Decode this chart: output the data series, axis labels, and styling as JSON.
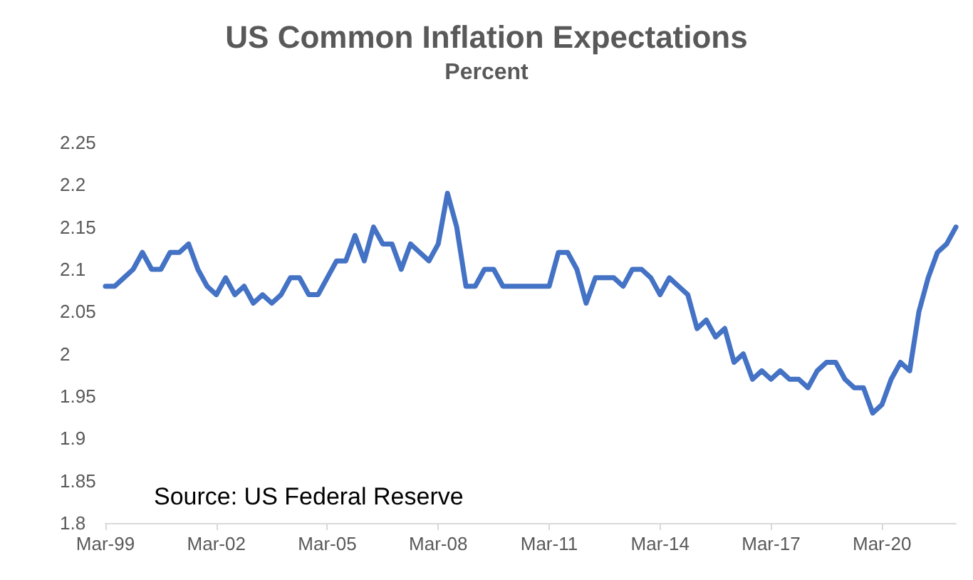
{
  "chart_data": {
    "type": "line",
    "title": "US Common Inflation Expectations",
    "subtitle": "Percent",
    "annotations": [
      "Source: US Federal Reserve"
    ],
    "categories": [
      "Mar-99",
      null,
      null,
      null,
      null,
      null,
      null,
      null,
      null,
      null,
      null,
      null,
      "Mar-02",
      null,
      null,
      null,
      null,
      null,
      null,
      null,
      null,
      null,
      null,
      null,
      "Mar-05",
      null,
      null,
      null,
      null,
      null,
      null,
      null,
      null,
      null,
      null,
      null,
      "Mar-08",
      null,
      null,
      null,
      null,
      null,
      null,
      null,
      null,
      null,
      null,
      null,
      "Mar-11",
      null,
      null,
      null,
      null,
      null,
      null,
      null,
      null,
      null,
      null,
      null,
      "Mar-14",
      null,
      null,
      null,
      null,
      null,
      null,
      null,
      null,
      null,
      null,
      null,
      "Mar-17",
      null,
      null,
      null,
      null,
      null,
      null,
      null,
      null,
      null,
      null,
      null,
      "Mar-20",
      null,
      null,
      null,
      null,
      null,
      null,
      null,
      null
    ],
    "series": [
      {
        "color": "#4472c4",
        "values": [
          2.08,
          2.08,
          2.09,
          2.1,
          2.12,
          2.1,
          2.1,
          2.12,
          2.12,
          2.13,
          2.1,
          2.08,
          2.07,
          2.09,
          2.07,
          2.08,
          2.06,
          2.07,
          2.06,
          2.07,
          2.09,
          2.09,
          2.07,
          2.07,
          2.09,
          2.11,
          2.11,
          2.14,
          2.11,
          2.15,
          2.13,
          2.13,
          2.1,
          2.13,
          2.12,
          2.11,
          2.13,
          2.19,
          2.15,
          2.08,
          2.08,
          2.1,
          2.1,
          2.08,
          2.08,
          2.08,
          2.08,
          2.08,
          2.08,
          2.12,
          2.12,
          2.1,
          2.06,
          2.09,
          2.09,
          2.09,
          2.08,
          2.1,
          2.1,
          2.09,
          2.07,
          2.09,
          2.08,
          2.07,
          2.03,
          2.04,
          2.02,
          2.03,
          1.99,
          2.0,
          1.97,
          1.98,
          1.97,
          1.98,
          1.97,
          1.97,
          1.96,
          1.98,
          1.99,
          1.99,
          1.97,
          1.96,
          1.96,
          1.93,
          1.94,
          1.97,
          1.99,
          1.98,
          2.05,
          2.09,
          2.12,
          2.13,
          2.15
        ]
      }
    ],
    "ylim": [
      1.8,
      2.25
    ],
    "yticks": [
      1.8,
      1.85,
      1.9,
      1.95,
      2,
      2.05,
      2.1,
      2.15,
      2.2,
      2.25
    ],
    "grid": false,
    "marker": "none",
    "line_style": "solid"
  }
}
